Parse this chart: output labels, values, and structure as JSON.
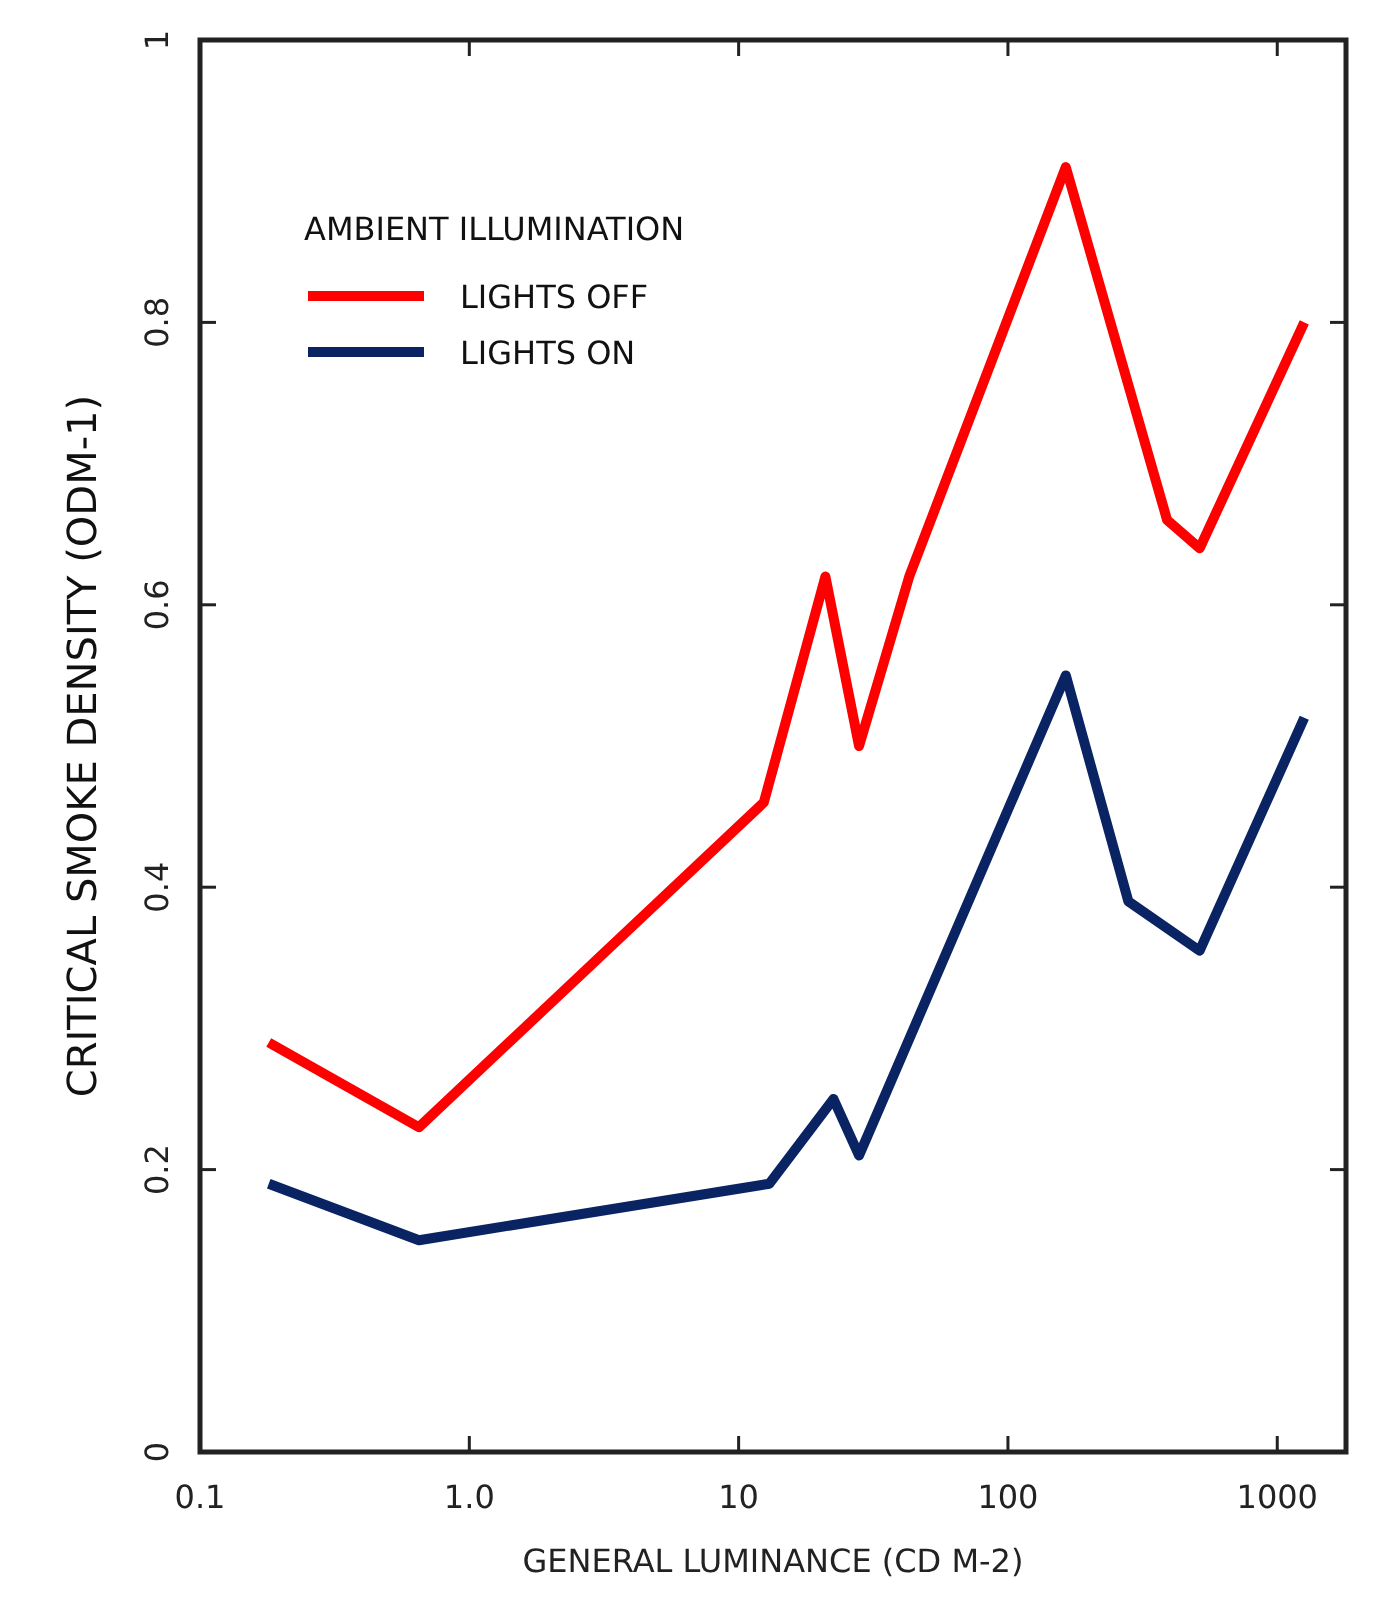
{
  "chart_data": {
    "type": "line",
    "xlabel": "GENERAL LUMINANCE (CD M-2)",
    "ylabel": "CRITICAL SMOKE DENSITY (ODM-1)",
    "legend_title": "AMBIENT ILLUMINATION",
    "log": "x",
    "xlim": [
      0.1,
      1800
    ],
    "xticks": [
      0.1,
      {
        "value": 1,
        "label": "1.0"
      },
      10,
      100,
      1000
    ],
    "ylim": [
      0,
      1
    ],
    "yticks": [
      0,
      0.2,
      0.4,
      0.6,
      0.8,
      1
    ],
    "grid": false,
    "legend": "top left",
    "marker": "none",
    "line_style": "solid",
    "series": [
      {
        "name": "LIGHTS OFF",
        "color": "#ff0000",
        "x": [
          0.18,
          0.65,
          12.4,
          21,
          28,
          43,
          164,
          390,
          515,
          1260
        ],
        "values": [
          0.29,
          0.23,
          0.46,
          0.62,
          0.5,
          0.62,
          0.91,
          0.66,
          0.64,
          0.8
        ]
      },
      {
        "name": "LIGHTS ON",
        "color": "#0a2463",
        "x": [
          0.18,
          0.65,
          13,
          22.5,
          28,
          164,
          280,
          515,
          1260
        ],
        "values": [
          0.19,
          0.15,
          0.19,
          0.25,
          0.21,
          0.55,
          0.39,
          0.355,
          0.52
        ]
      }
    ]
  }
}
